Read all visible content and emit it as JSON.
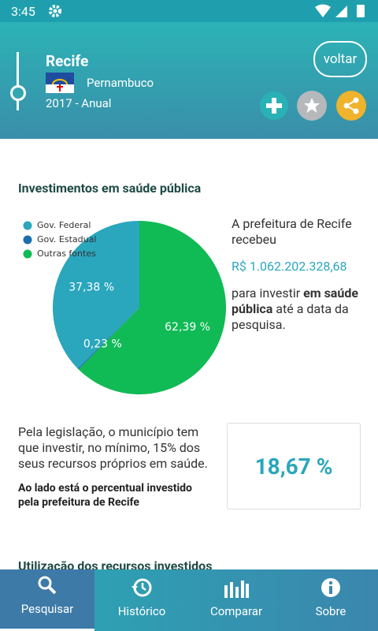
{
  "status_bar": {
    "time": "3:45"
  },
  "header": {
    "city": "Recife",
    "state": "Pernambuco",
    "period": "2017 - Anual",
    "back_button": "voltar"
  },
  "investment": {
    "title": "Investimentos em saúde pública",
    "pie": {
      "type": "pie",
      "categories": [
        "Gov. Federal",
        "Gov. Estadual",
        "Outras fontes"
      ],
      "values": [
        37.38,
        0.23,
        62.39
      ],
      "value_labels": [
        "37,38 %",
        "0,23 %",
        "62,39 %"
      ],
      "colors": [
        "#2aa6bd",
        "#1b6fae",
        "#10ba55"
      ]
    },
    "intro": "A prefeitura de Recife recebeu",
    "amount": "R$ 1.062.202.328,68",
    "purpose_start": "para investir",
    "purpose_bold": "em saúde pública",
    "purpose_end": "até a data da pesquisa."
  },
  "legislation": {
    "text": "Pela legislação, o município tem que investir, no mínimo, 15% dos seus recursos próprios em saúde.",
    "note": "Ao lado está o percentual investido pela prefeitura de Recife",
    "percent": "18,67 %"
  },
  "next_section": "Utilização dos recursos investidos",
  "nav": [
    "Pesquisar",
    "Histórico",
    "Comparar",
    "Sobre"
  ]
}
